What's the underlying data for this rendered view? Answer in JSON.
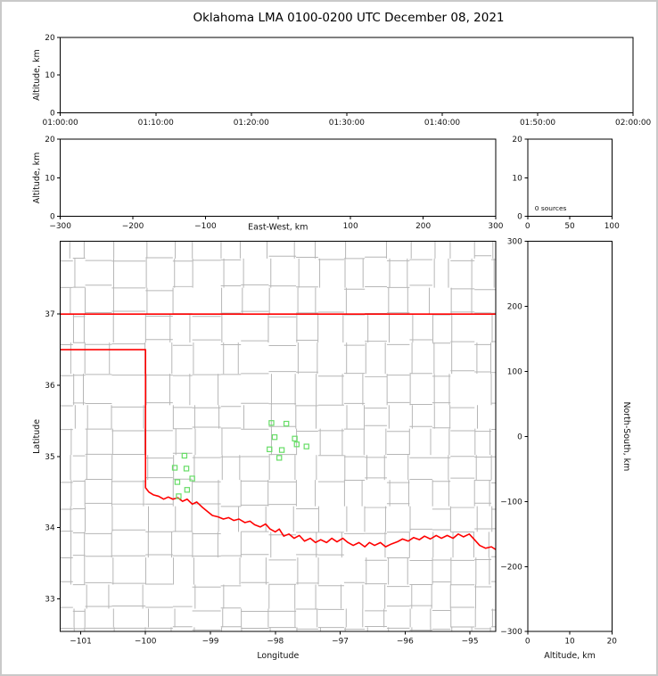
{
  "title": "Oklahoma LMA 0100-0200 UTC December 08, 2021",
  "colors": {
    "figure_bg": "#ffffff",
    "axis": "#000000",
    "state_border": "#ff0000",
    "county_line": "#b6b6b6",
    "station": "#66dd66",
    "figure_border": "#c9c9c9"
  },
  "chart_data": [
    {
      "id": "altitude-vs-time",
      "type": "scatter",
      "ylabel": "Altitude, km",
      "ylim": [
        0,
        20
      ],
      "yticks": [
        {
          "v": 0,
          "t": "0"
        },
        {
          "v": 10,
          "t": "10"
        },
        {
          "v": 20,
          "t": "20"
        }
      ],
      "xlim": [
        0,
        1
      ],
      "xticks": [
        {
          "v": 0,
          "t": "01:00:00"
        },
        {
          "v": 0.16667,
          "t": "01:10:00"
        },
        {
          "v": 0.33333,
          "t": "01:20:00"
        },
        {
          "v": 0.5,
          "t": "01:30:00"
        },
        {
          "v": 0.66667,
          "t": "01:40:00"
        },
        {
          "v": 0.83333,
          "t": "01:50:00"
        },
        {
          "v": 1,
          "t": "02:00:00"
        }
      ],
      "points": []
    },
    {
      "id": "altitude-vs-eastwest",
      "type": "scatter",
      "xlabel": "East-West, km",
      "ylabel": "Altitude, km",
      "xlim": [
        -300,
        300
      ],
      "xticks": [
        {
          "v": -300,
          "t": "−300"
        },
        {
          "v": -200,
          "t": "−200"
        },
        {
          "v": -100,
          "t": "−100"
        },
        {
          "v": 0,
          "t": ""
        },
        {
          "v": 100,
          "t": "100"
        },
        {
          "v": 200,
          "t": "200"
        },
        {
          "v": 300,
          "t": "300"
        }
      ],
      "ylim": [
        0,
        20
      ],
      "yticks": [
        {
          "v": 0,
          "t": "0"
        },
        {
          "v": 10,
          "t": "10"
        },
        {
          "v": 20,
          "t": "20"
        }
      ],
      "points": []
    },
    {
      "id": "source-histogram",
      "type": "scatter",
      "annotation": "0 sources",
      "xlim": [
        0,
        100
      ],
      "xticks": [
        {
          "v": 0,
          "t": "0"
        },
        {
          "v": 50,
          "t": "50"
        },
        {
          "v": 100,
          "t": "100"
        }
      ],
      "ylim": [
        0,
        20
      ],
      "yticks": [
        {
          "v": 0,
          "t": "0"
        },
        {
          "v": 10,
          "t": "10"
        },
        {
          "v": 20,
          "t": "20"
        }
      ],
      "points": []
    },
    {
      "id": "plan-view-map",
      "type": "scatter",
      "xlabel": "Longitude",
      "ylabel": "Latitude",
      "xlim": [
        -101.314,
        -94.603
      ],
      "xticks": [
        {
          "v": -101,
          "t": "−101"
        },
        {
          "v": -100,
          "t": "−100"
        },
        {
          "v": -99,
          "t": "−99"
        },
        {
          "v": -98,
          "t": "−98"
        },
        {
          "v": -97,
          "t": "−97"
        },
        {
          "v": -96,
          "t": "−96"
        },
        {
          "v": -95,
          "t": "−95"
        }
      ],
      "ylim": [
        32.539,
        38.022
      ],
      "yticks": [
        {
          "v": 33,
          "t": "33"
        },
        {
          "v": 34,
          "t": "34"
        },
        {
          "v": 35,
          "t": "35"
        },
        {
          "v": 36,
          "t": "36"
        },
        {
          "v": 37,
          "t": "37"
        }
      ],
      "stations": [
        [
          -98.06,
          35.47
        ],
        [
          -97.83,
          35.46
        ],
        [
          -98.01,
          35.27
        ],
        [
          -97.7,
          35.25
        ],
        [
          -98.09,
          35.1
        ],
        [
          -97.9,
          35.09
        ],
        [
          -97.67,
          35.17
        ],
        [
          -97.52,
          35.14
        ],
        [
          -97.94,
          34.98
        ],
        [
          -99.4,
          35.01
        ],
        [
          -99.55,
          34.84
        ],
        [
          -99.37,
          34.83
        ],
        [
          -99.28,
          34.69
        ],
        [
          -99.51,
          34.64
        ],
        [
          -99.36,
          34.53
        ],
        [
          -99.49,
          34.44
        ]
      ]
    },
    {
      "id": "altitude-vs-northsouth",
      "type": "scatter",
      "xlabel": "Altitude, km",
      "ylabel": "North-South, km",
      "xlim": [
        0,
        20
      ],
      "xticks": [
        {
          "v": 0,
          "t": "0"
        },
        {
          "v": 10,
          "t": "10"
        },
        {
          "v": 20,
          "t": "20"
        }
      ],
      "ylim": [
        -300,
        300
      ],
      "yticks": [
        {
          "v": 300,
          "t": "300"
        },
        {
          "v": 200,
          "t": "200"
        },
        {
          "v": 100,
          "t": "100"
        },
        {
          "v": 0,
          "t": "0"
        },
        {
          "v": -100,
          "t": "−100"
        },
        {
          "v": -200,
          "t": "−200"
        },
        {
          "v": -300,
          "t": "−300"
        }
      ],
      "points": []
    }
  ],
  "map_overlays": {
    "oklahoma_border": {
      "north_lat": 37.0,
      "panhandle_south_lat": 36.5,
      "west_border_lon": -100.0,
      "red_river": [
        [
          -100.0,
          34.56
        ],
        [
          -99.95,
          34.5
        ],
        [
          -99.88,
          34.46
        ],
        [
          -99.8,
          34.44
        ],
        [
          -99.72,
          34.4
        ],
        [
          -99.65,
          34.43
        ],
        [
          -99.58,
          34.4
        ],
        [
          -99.5,
          34.42
        ],
        [
          -99.43,
          34.37
        ],
        [
          -99.36,
          34.4
        ],
        [
          -99.28,
          34.33
        ],
        [
          -99.21,
          34.36
        ],
        [
          -99.13,
          34.29
        ],
        [
          -99.05,
          34.23
        ],
        [
          -98.97,
          34.17
        ],
        [
          -98.88,
          34.15
        ],
        [
          -98.8,
          34.12
        ],
        [
          -98.72,
          34.14
        ],
        [
          -98.64,
          34.1
        ],
        [
          -98.56,
          34.12
        ],
        [
          -98.47,
          34.07
        ],
        [
          -98.39,
          34.09
        ],
        [
          -98.32,
          34.04
        ],
        [
          -98.23,
          34.01
        ],
        [
          -98.15,
          34.05
        ],
        [
          -98.08,
          33.98
        ],
        [
          -98.0,
          33.94
        ],
        [
          -97.94,
          33.98
        ],
        [
          -97.87,
          33.88
        ],
        [
          -97.79,
          33.91
        ],
        [
          -97.71,
          33.85
        ],
        [
          -97.63,
          33.89
        ],
        [
          -97.55,
          33.81
        ],
        [
          -97.46,
          33.85
        ],
        [
          -97.38,
          33.79
        ],
        [
          -97.3,
          33.83
        ],
        [
          -97.21,
          33.79
        ],
        [
          -97.13,
          33.85
        ],
        [
          -97.05,
          33.8
        ],
        [
          -96.96,
          33.85
        ],
        [
          -96.88,
          33.79
        ],
        [
          -96.8,
          33.75
        ],
        [
          -96.71,
          33.79
        ],
        [
          -96.62,
          33.73
        ],
        [
          -96.55,
          33.79
        ],
        [
          -96.47,
          33.75
        ],
        [
          -96.38,
          33.79
        ],
        [
          -96.3,
          33.73
        ],
        [
          -96.21,
          33.77
        ],
        [
          -96.12,
          33.8
        ],
        [
          -96.04,
          33.84
        ],
        [
          -95.95,
          33.81
        ],
        [
          -95.87,
          33.86
        ],
        [
          -95.78,
          33.83
        ],
        [
          -95.7,
          33.88
        ],
        [
          -95.61,
          33.84
        ],
        [
          -95.52,
          33.89
        ],
        [
          -95.44,
          33.85
        ],
        [
          -95.35,
          33.89
        ],
        [
          -95.26,
          33.85
        ],
        [
          -95.18,
          33.91
        ],
        [
          -95.1,
          33.87
        ],
        [
          -95.01,
          33.91
        ],
        [
          -94.93,
          33.83
        ],
        [
          -94.85,
          33.75
        ],
        [
          -94.76,
          33.71
        ],
        [
          -94.67,
          33.73
        ],
        [
          -94.6,
          33.69
        ]
      ]
    },
    "county_grid_approx": {
      "lons": [
        -101.12,
        -100.93,
        -100.52,
        -100.0,
        -99.58,
        -99.28,
        -98.84,
        -98.53,
        -98.1,
        -97.68,
        -97.34,
        -96.94,
        -96.62,
        -96.28,
        -95.93,
        -95.58,
        -95.3,
        -94.93,
        -94.67
      ],
      "lats": [
        37.78,
        37.37,
        37.0,
        36.6,
        36.16,
        35.72,
        35.39,
        35.02,
        34.67,
        34.3,
        33.94,
        33.58,
        33.2,
        32.86,
        32.6
      ]
    }
  }
}
